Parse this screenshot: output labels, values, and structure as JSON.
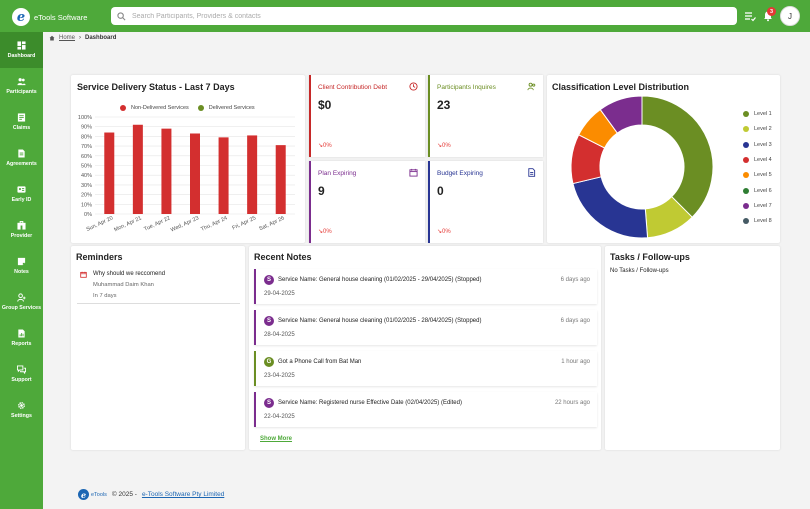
{
  "app": {
    "name": "eTools Software",
    "logo_letter": "e"
  },
  "search": {
    "placeholder": "Search Participants, Providers & contacts",
    "value": ""
  },
  "header": {
    "notification_count": "3",
    "avatar_initial": "J"
  },
  "sidebar": {
    "items": [
      {
        "label": "Dashboard",
        "icon": "dashboard-icon",
        "active": true
      },
      {
        "label": "Participants",
        "icon": "people-icon"
      },
      {
        "label": "Claims",
        "icon": "claims-icon"
      },
      {
        "label": "Agreements",
        "icon": "agreement-icon"
      },
      {
        "label": "Early ID",
        "icon": "early-id-icon"
      },
      {
        "label": "Provider",
        "icon": "provider-icon"
      },
      {
        "label": "Notes",
        "icon": "notes-icon"
      },
      {
        "label": "Group Services",
        "icon": "group-icon"
      },
      {
        "label": "Reports",
        "icon": "reports-icon"
      },
      {
        "label": "Support",
        "icon": "support-icon"
      },
      {
        "label": "Settings",
        "icon": "settings-icon"
      }
    ]
  },
  "breadcrumb": {
    "home": "Home",
    "current": "Dashboard"
  },
  "service_delivery": {
    "title": "Service Delivery Status - Last 7 Days",
    "legend_non_delivered": "Non-Delivered Services",
    "legend_delivered": "Delivered Services"
  },
  "kpis": [
    {
      "label": "Client Contribution Debt",
      "value": "$0",
      "trend": "0%",
      "color": "#c62828",
      "label_color": "#c62828",
      "icon": "clock-icon"
    },
    {
      "label": "Participants Inquires",
      "value": "23",
      "trend": "0%",
      "color": "#6b8e23",
      "label_color": "#6b8e23",
      "icon": "participants-icon"
    },
    {
      "label": "Plan Expiring",
      "value": "9",
      "trend": "0%",
      "color": "#7b2d8e",
      "label_color": "#7b2d8e",
      "icon": "calendar-icon"
    },
    {
      "label": "Budget Expiring",
      "value": "0",
      "trend": "0%",
      "color": "#283593",
      "label_color": "#283593",
      "icon": "document-icon"
    }
  ],
  "classification": {
    "title": "Classification Level Distribution"
  },
  "reminders": {
    "title": "Reminders",
    "items": [
      {
        "title": "Why should we reccomend",
        "author": "Muhammad Daim Khan",
        "due": "In 7 days"
      }
    ]
  },
  "recent_notes": {
    "title": "Recent Notes",
    "show_more": "Show More",
    "items": [
      {
        "badge": "S",
        "text": "Service Name: General house cleaning (01/02/2025 - 29/04/2025) (Stopped)",
        "time": "6 days ago",
        "date": "29-04-2025",
        "color": "#7b2d8e"
      },
      {
        "badge": "S",
        "text": "Service Name: General house cleaning (01/02/2025 - 28/04/2025) (Stopped)",
        "time": "6 days ago",
        "date": "28-04-2025",
        "color": "#7b2d8e"
      },
      {
        "badge": "G",
        "text": "Got a Phone Call from Bat Man",
        "time": "1 hour ago",
        "date": "23-04-2025",
        "color": "#6b8e23"
      },
      {
        "badge": "S",
        "text": "Service Name: Registered nurse Effective Date (02/04/2025) (Edited)",
        "time": "22 hours ago",
        "date": "22-04-2025",
        "color": "#7b2d8e"
      }
    ]
  },
  "tasks": {
    "title": "Tasks / Follow-ups",
    "empty": "No Tasks / Follow-ups"
  },
  "footer": {
    "logo_text": "eTools",
    "copyright": "© 2025 -",
    "company": "e-Tools Software Pty Limited"
  },
  "chart_data": [
    {
      "type": "bar",
      "title": "Service Delivery Status - Last 7 Days",
      "categories": [
        "Sun, Apr 20",
        "Mon, Apr 21",
        "Tue, Apr 22",
        "Wed, Apr 23",
        "Thu, Apr 24",
        "Fri, Apr 25",
        "Sat, Apr 26"
      ],
      "series": [
        {
          "name": "Non-Delivered Services",
          "color": "#d32f2f",
          "values": [
            84,
            92,
            88,
            83,
            79,
            81,
            71
          ]
        },
        {
          "name": "Delivered Services",
          "color": "#6b8e23",
          "values": [
            0,
            0,
            0,
            0,
            0,
            0,
            0
          ]
        }
      ],
      "yticks": [
        "100%",
        "90%",
        "80%",
        "70%",
        "60%",
        "50%",
        "40%",
        "30%",
        "20%",
        "10%",
        "0%"
      ],
      "ylim": [
        0,
        100
      ],
      "grid": true,
      "legend": "top"
    },
    {
      "type": "pie",
      "title": "Classification Level Distribution",
      "donut": true,
      "labels": [
        "Level 1",
        "Level 2",
        "Level 3",
        "Level 4",
        "Level 5",
        "Level 6",
        "Level 7",
        "Level 8"
      ],
      "values": [
        30,
        9,
        18,
        9,
        6,
        0,
        8,
        0
      ],
      "colors": [
        "#6b8e23",
        "#c0ca33",
        "#283593",
        "#d32f2f",
        "#fb8c00",
        "#2e7d32",
        "#7b2d8e",
        "#455a64"
      ],
      "legend": "right"
    }
  ]
}
